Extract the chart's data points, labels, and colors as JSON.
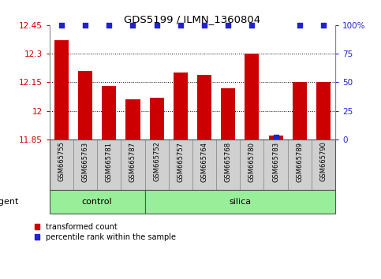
{
  "title": "GDS5199 / ILMN_1360804",
  "samples": [
    "GSM665755",
    "GSM665763",
    "GSM665781",
    "GSM665787",
    "GSM665752",
    "GSM665757",
    "GSM665764",
    "GSM665768",
    "GSM665780",
    "GSM665783",
    "GSM665789",
    "GSM665790"
  ],
  "bar_values": [
    12.37,
    12.21,
    12.13,
    12.06,
    12.07,
    12.2,
    12.19,
    12.12,
    12.3,
    11.87,
    12.15,
    12.15
  ],
  "percentile_values": [
    100,
    100,
    100,
    100,
    100,
    100,
    100,
    100,
    100,
    2,
    100,
    100
  ],
  "ylim_left": [
    11.85,
    12.45
  ],
  "ylim_right": [
    0,
    100
  ],
  "yticks_left": [
    11.85,
    12.0,
    12.15,
    12.3,
    12.45
  ],
  "yticks_right": [
    0,
    25,
    50,
    75,
    100
  ],
  "ytick_labels_left": [
    "11.85",
    "12",
    "12.15",
    "12.3",
    "12.45"
  ],
  "ytick_labels_right": [
    "0",
    "25",
    "50",
    "75",
    "100%"
  ],
  "bar_color": "#cc0000",
  "percentile_color": "#2222cc",
  "control_group_count": 4,
  "silica_group_count": 8,
  "group_label_control": "control",
  "group_label_silica": "silica",
  "agent_label": "agent",
  "legend_bar": "transformed count",
  "legend_dot": "percentile rank within the sample",
  "background_color": "#ffffff",
  "xlabel_area_color": "#d0d0d0",
  "group_area_color": "#99ee99",
  "gridline_vals": [
    12.0,
    12.15,
    12.3
  ]
}
